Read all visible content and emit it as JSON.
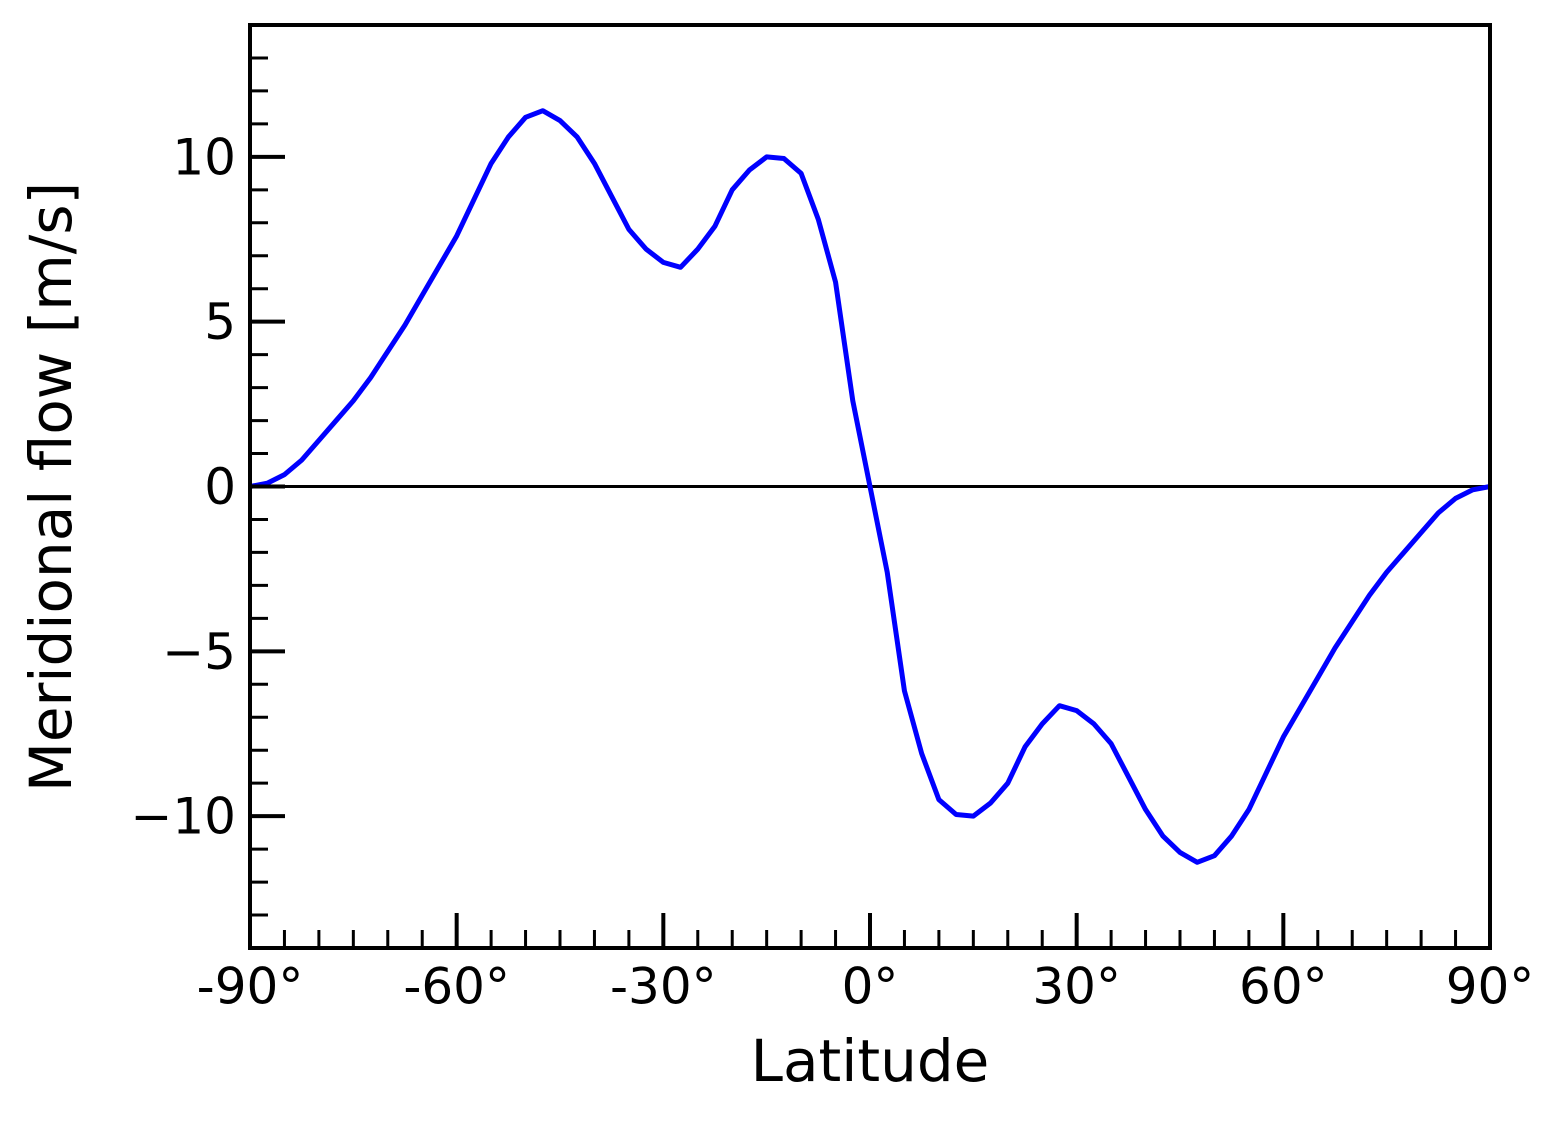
{
  "chart_data": {
    "type": "line",
    "xlabel": "Latitude",
    "ylabel": "Meridional flow [m/s]",
    "x": [
      -90,
      -87.5,
      -85,
      -82.5,
      -80,
      -77.5,
      -75,
      -72.5,
      -70,
      -67.5,
      -65,
      -62.5,
      -60,
      -57.5,
      -55,
      -52.5,
      -50,
      -47.5,
      -45,
      -42.5,
      -40,
      -37.5,
      -35,
      -32.5,
      -30,
      -27.5,
      -25,
      -22.5,
      -20,
      -17.5,
      -15,
      -12.5,
      -10,
      -7.5,
      -5,
      -2.5,
      0,
      2.5,
      5,
      7.5,
      10,
      12.5,
      15,
      17.5,
      20,
      22.5,
      25,
      27.5,
      30,
      32.5,
      35,
      37.5,
      40,
      42.5,
      45,
      47.5,
      50,
      52.5,
      55,
      57.5,
      60,
      62.5,
      65,
      67.5,
      70,
      72.5,
      75,
      77.5,
      80,
      82.5,
      85,
      87.5,
      90
    ],
    "series": [
      {
        "color": "#0000ff",
        "values": [
          0,
          0.1,
          0.36,
          0.8,
          1.4,
          2.0,
          2.6,
          3.3,
          4.1,
          4.9,
          5.8,
          6.7,
          7.6,
          8.7,
          9.8,
          10.6,
          11.2,
          11.4,
          11.1,
          10.6,
          9.8,
          8.8,
          7.8,
          7.2,
          6.8,
          6.65,
          7.2,
          7.9,
          9.0,
          9.6,
          10.0,
          9.95,
          9.5,
          8.1,
          6.2,
          2.6,
          0,
          -2.6,
          -6.2,
          -8.1,
          -9.5,
          -9.95,
          -10.0,
          -9.6,
          -9.0,
          -7.9,
          -7.2,
          -6.65,
          -6.8,
          -7.2,
          -7.8,
          -8.8,
          -9.8,
          -10.6,
          -11.1,
          -11.4,
          -11.2,
          -10.6,
          -9.8,
          -8.7,
          -7.6,
          -6.7,
          -5.8,
          -4.9,
          -4.1,
          -3.3,
          -2.6,
          -2.0,
          -1.4,
          -0.8,
          -0.36,
          -0.1,
          0
        ]
      }
    ],
    "xlim": [
      -90,
      90
    ],
    "xticks": [
      {
        "value": -90,
        "label": "-90°"
      },
      {
        "value": -60,
        "label": "-60°"
      },
      {
        "value": -30,
        "label": "-30°"
      },
      {
        "value": 0,
        "label": "0°"
      },
      {
        "value": 30,
        "label": "30°"
      },
      {
        "value": 60,
        "label": "60°"
      },
      {
        "value": 90,
        "label": "90°"
      }
    ],
    "xminorticks": [
      -85,
      -80,
      -75,
      -70,
      -65,
      -55,
      -50,
      -45,
      -40,
      -35,
      -25,
      -20,
      -15,
      -10,
      -5,
      5,
      10,
      15,
      20,
      25,
      35,
      40,
      45,
      50,
      55,
      65,
      70,
      75,
      80,
      85
    ],
    "ylim": [
      -14,
      14
    ],
    "yticks": [
      {
        "value": -10,
        "label": "−10"
      },
      {
        "value": -5,
        "label": "−5"
      },
      0,
      5,
      10
    ],
    "yminorticks": [
      -13,
      -12,
      -11,
      -9,
      -8,
      -7,
      -6,
      -4,
      -3,
      -2,
      -1,
      1,
      2,
      3,
      4,
      6,
      7,
      8,
      9,
      11,
      12,
      13
    ],
    "hline": 0,
    "grid": false
  }
}
